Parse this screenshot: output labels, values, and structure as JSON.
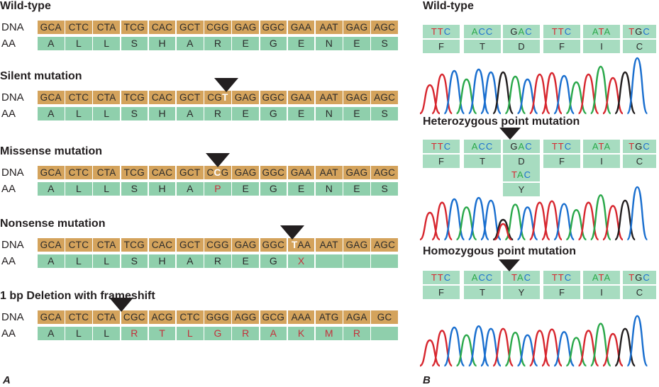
{
  "panelA": {
    "label": "A",
    "dna_label": "DNA",
    "aa_label": "AA",
    "sections": [
      {
        "title": "Wild-type",
        "codons": [
          "GCA",
          "CTC",
          "CTA",
          "TCG",
          "CAC",
          "GCT",
          "CGG",
          "GAG",
          "GGC",
          "GAA",
          "AAT",
          "GAG",
          "AGC"
        ],
        "aas": [
          "A",
          "L",
          "L",
          "S",
          "H",
          "A",
          "R",
          "E",
          "G",
          "E",
          "N",
          "E",
          "S"
        ],
        "red_aas": [],
        "mutation_codon": null,
        "mutation_pos": null
      },
      {
        "title": "Silent mutation",
        "codons": [
          "GCA",
          "CTC",
          "CTA",
          "TCG",
          "CAC",
          "GCT",
          "CGT",
          "GAG",
          "GGC",
          "GAA",
          "AAT",
          "GAG",
          "AGC"
        ],
        "aas": [
          "A",
          "L",
          "L",
          "S",
          "H",
          "A",
          "R",
          "E",
          "G",
          "E",
          "N",
          "E",
          "S"
        ],
        "red_aas": [],
        "mutation_codon": 6,
        "mutation_pos": 2
      },
      {
        "title": "Missense mutation",
        "codons": [
          "GCA",
          "CTC",
          "CTA",
          "TCG",
          "CAC",
          "GCT",
          "CCG",
          "GAG",
          "GGC",
          "GAA",
          "AAT",
          "GAG",
          "AGC"
        ],
        "aas": [
          "A",
          "L",
          "L",
          "S",
          "H",
          "A",
          "P",
          "E",
          "G",
          "E",
          "N",
          "E",
          "S"
        ],
        "red_aas": [
          6
        ],
        "mutation_codon": 6,
        "mutation_pos": 1
      },
      {
        "title": "Nonsense mutation",
        "codons": [
          "GCA",
          "CTC",
          "CTA",
          "TCG",
          "CAC",
          "GCT",
          "CGG",
          "GAG",
          "GGC",
          "TAA",
          "AAT",
          "GAG",
          "AGC"
        ],
        "aas": [
          "A",
          "L",
          "L",
          "S",
          "H",
          "A",
          "R",
          "E",
          "G",
          "X",
          "",
          "",
          ""
        ],
        "red_aas": [
          9
        ],
        "mutation_codon": 9,
        "mutation_pos": 0
      },
      {
        "title": "1 bp Deletion with frameshift",
        "codons": [
          "GCA",
          "CTC",
          "CTA",
          "CGC",
          "ACG",
          "CTC",
          "GGG",
          "AGG",
          "GCG",
          "AAA",
          "ATG",
          "AGA",
          "GC"
        ],
        "aas": [
          "A",
          "L",
          "L",
          "R",
          "T",
          "L",
          "G",
          "R",
          "A",
          "K",
          "M",
          "R",
          ""
        ],
        "red_aas": [
          3,
          4,
          5,
          6,
          7,
          8,
          9,
          10,
          11
        ],
        "mutation_codon": 3,
        "mutation_pos": -1
      }
    ]
  },
  "panelB": {
    "label": "B",
    "sections": [
      {
        "title": "Wild-type",
        "codons": [
          "TTC",
          "ACC",
          "GAC",
          "TTC",
          "ATA",
          "TGC"
        ],
        "aas": [
          "F",
          "T",
          "D",
          "F",
          "I",
          "C"
        ]
      },
      {
        "title": "Heterozygous point mutation",
        "codons": [
          "TTC",
          "ACC",
          "GAC",
          "TTC",
          "ATA",
          "TGC"
        ],
        "aas": [
          "F",
          "T",
          "D",
          "F",
          "I",
          "C"
        ],
        "alt_codon": "TAC",
        "alt_aa": "Y"
      },
      {
        "title": "Homozygous point mutation",
        "codons": [
          "TTC",
          "ACC",
          "TAC",
          "TTC",
          "ATA",
          "TGC"
        ],
        "aas": [
          "F",
          "T",
          "Y",
          "F",
          "I",
          "C"
        ]
      }
    ],
    "trace_colors": {
      "T": "#d7262e",
      "A": "#2aa84a",
      "C": "#1a6fcf",
      "G": "#231f20"
    }
  }
}
